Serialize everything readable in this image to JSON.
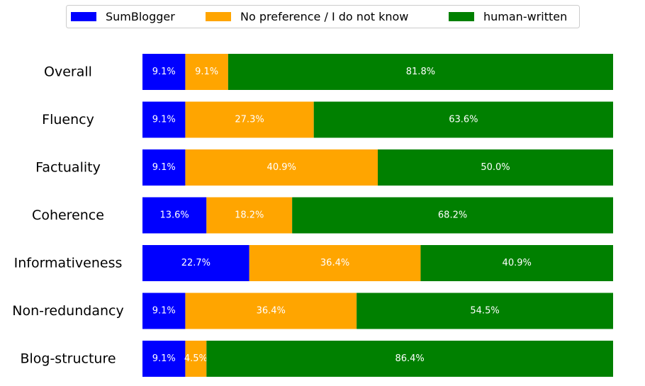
{
  "chart_data": {
    "type": "bar",
    "orientation": "horizontal",
    "stacked": true,
    "title": "",
    "xlabel": "",
    "ylabel": "",
    "xlim": [
      0,
      100
    ],
    "grid": false,
    "legend_position": "top-center",
    "categories": [
      "Overall",
      "Fluency",
      "Factuality",
      "Coherence",
      "Informativeness",
      "Non-redundancy",
      "Blog-structure"
    ],
    "series": [
      {
        "name": "SumBlogger",
        "color": "#0000ff",
        "values": [
          9.1,
          9.1,
          9.1,
          13.6,
          22.7,
          9.1,
          9.1
        ],
        "labels": [
          "9.1%",
          "9.1%",
          "9.1%",
          "13.6%",
          "22.7%",
          "9.1%",
          "9.1%"
        ]
      },
      {
        "name": "No preference / I do not know",
        "color": "#ffa500",
        "values": [
          9.1,
          27.3,
          40.9,
          18.2,
          36.4,
          36.4,
          4.5
        ],
        "labels": [
          "9.1%",
          "27.3%",
          "40.9%",
          "18.2%",
          "36.4%",
          "36.4%",
          "4.5%"
        ]
      },
      {
        "name": "human-written",
        "color": "#008000",
        "values": [
          81.8,
          63.6,
          50.0,
          68.2,
          40.9,
          54.5,
          86.4
        ],
        "labels": [
          "81.8%",
          "63.6%",
          "50.0%",
          "68.2%",
          "40.9%",
          "54.5%",
          "86.4%"
        ]
      }
    ]
  }
}
